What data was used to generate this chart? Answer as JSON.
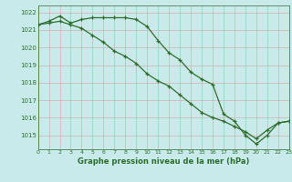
{
  "title": "Graphe pression niveau de la mer (hPa)",
  "bg_color": "#c8eaea",
  "grid_color": "#b0d4d4",
  "line_color": "#2d6e2d",
  "line1": [
    1021.3,
    1021.5,
    1021.8,
    1021.4,
    1021.6,
    1021.7,
    1021.7,
    1021.7,
    1021.7,
    1021.6,
    1021.2,
    1020.4,
    1019.7,
    1019.3,
    1018.6,
    1018.2,
    1017.9,
    1016.2,
    1015.8,
    1015.0,
    1014.5,
    1015.0,
    1015.7,
    1015.8
  ],
  "line2": [
    1021.3,
    1021.4,
    1021.5,
    1021.3,
    1021.1,
    1020.7,
    1020.3,
    1019.8,
    1019.5,
    1019.1,
    1018.5,
    1018.1,
    1017.8,
    1017.3,
    1016.8,
    1016.3,
    1016.0,
    1015.8,
    1015.5,
    1015.2,
    1014.8,
    1015.3,
    1015.7,
    1015.8
  ],
  "xlim": [
    0,
    23
  ],
  "ylim": [
    1014.2,
    1022.4
  ],
  "yticks": [
    1015,
    1016,
    1017,
    1018,
    1019,
    1020,
    1021,
    1022
  ],
  "xticks": [
    0,
    1,
    2,
    3,
    4,
    5,
    6,
    7,
    8,
    9,
    10,
    11,
    12,
    13,
    14,
    15,
    16,
    17,
    18,
    19,
    20,
    21,
    22,
    23
  ],
  "marker_size": 3.0,
  "linewidth": 0.9
}
